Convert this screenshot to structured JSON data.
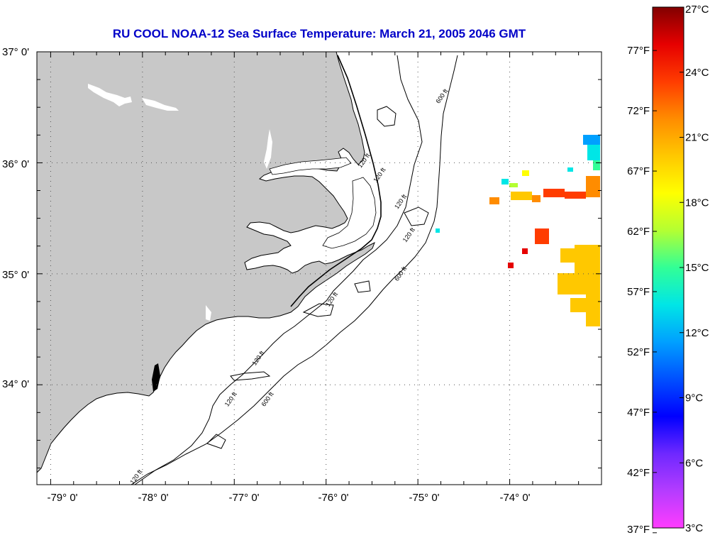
{
  "title": "RU COOL  NOAA-12  Sea Surface Temperature:  March 21, 2005 2046 GMT",
  "map": {
    "lat_labels": [
      "37° 0'",
      "36° 0'",
      "35° 0'",
      "34° 0'"
    ],
    "lon_labels": [
      "-79° 0'",
      "-78° 0'",
      "-77° 0'",
      "-76° 0'",
      "-75° 0'",
      "-74° 0'"
    ],
    "lat_range": [
      33.1,
      37.0
    ],
    "lon_range": [
      -79.15,
      -73.0
    ],
    "land_color": "#c8c8c8",
    "grid": "dotted",
    "contour_labels": [
      {
        "text": "120 ft",
        "lat": 35.82,
        "lon": -75.45
      },
      {
        "text": "120 ft",
        "lat": 35.95,
        "lon": -75.62
      },
      {
        "text": "120 ft",
        "lat": 35.58,
        "lon": -75.22
      },
      {
        "text": "120 ft",
        "lat": 35.28,
        "lon": -75.13
      },
      {
        "text": "600 ft",
        "lat": 36.53,
        "lon": -74.77
      },
      {
        "text": "600 ft",
        "lat": 34.93,
        "lon": -75.22
      },
      {
        "text": "120 ft",
        "lat": 34.7,
        "lon": -75.97
      },
      {
        "text": "120 ft",
        "lat": 34.17,
        "lon": -76.77
      },
      {
        "text": "120 ft",
        "lat": 33.8,
        "lon": -77.07
      },
      {
        "text": "600 ft",
        "lat": 33.8,
        "lon": -76.67
      },
      {
        "text": "120 ft",
        "lat": 33.1,
        "lon": -78.1
      }
    ]
  },
  "colorbar": {
    "celsius_labels": [
      "27°C",
      "24°C",
      "21°C",
      "18°C",
      "15°C",
      "12°C",
      "9°C",
      "6°C",
      "3°C"
    ],
    "fahrenheit_labels": [
      "77°F",
      "72°F",
      "67°F",
      "62°F",
      "57°F",
      "52°F",
      "47°F",
      "42°F",
      "37°F"
    ],
    "celsius_range": [
      3,
      27
    ],
    "colors": [
      "#ff3cff",
      "#b43cff",
      "#6e28ff",
      "#0000ff",
      "#0050ff",
      "#00a0ff",
      "#00e6e6",
      "#32ff96",
      "#b4ff32",
      "#ffff00",
      "#ffc800",
      "#ff8c00",
      "#ff3c00",
      "#e60000",
      "#820000"
    ]
  }
}
